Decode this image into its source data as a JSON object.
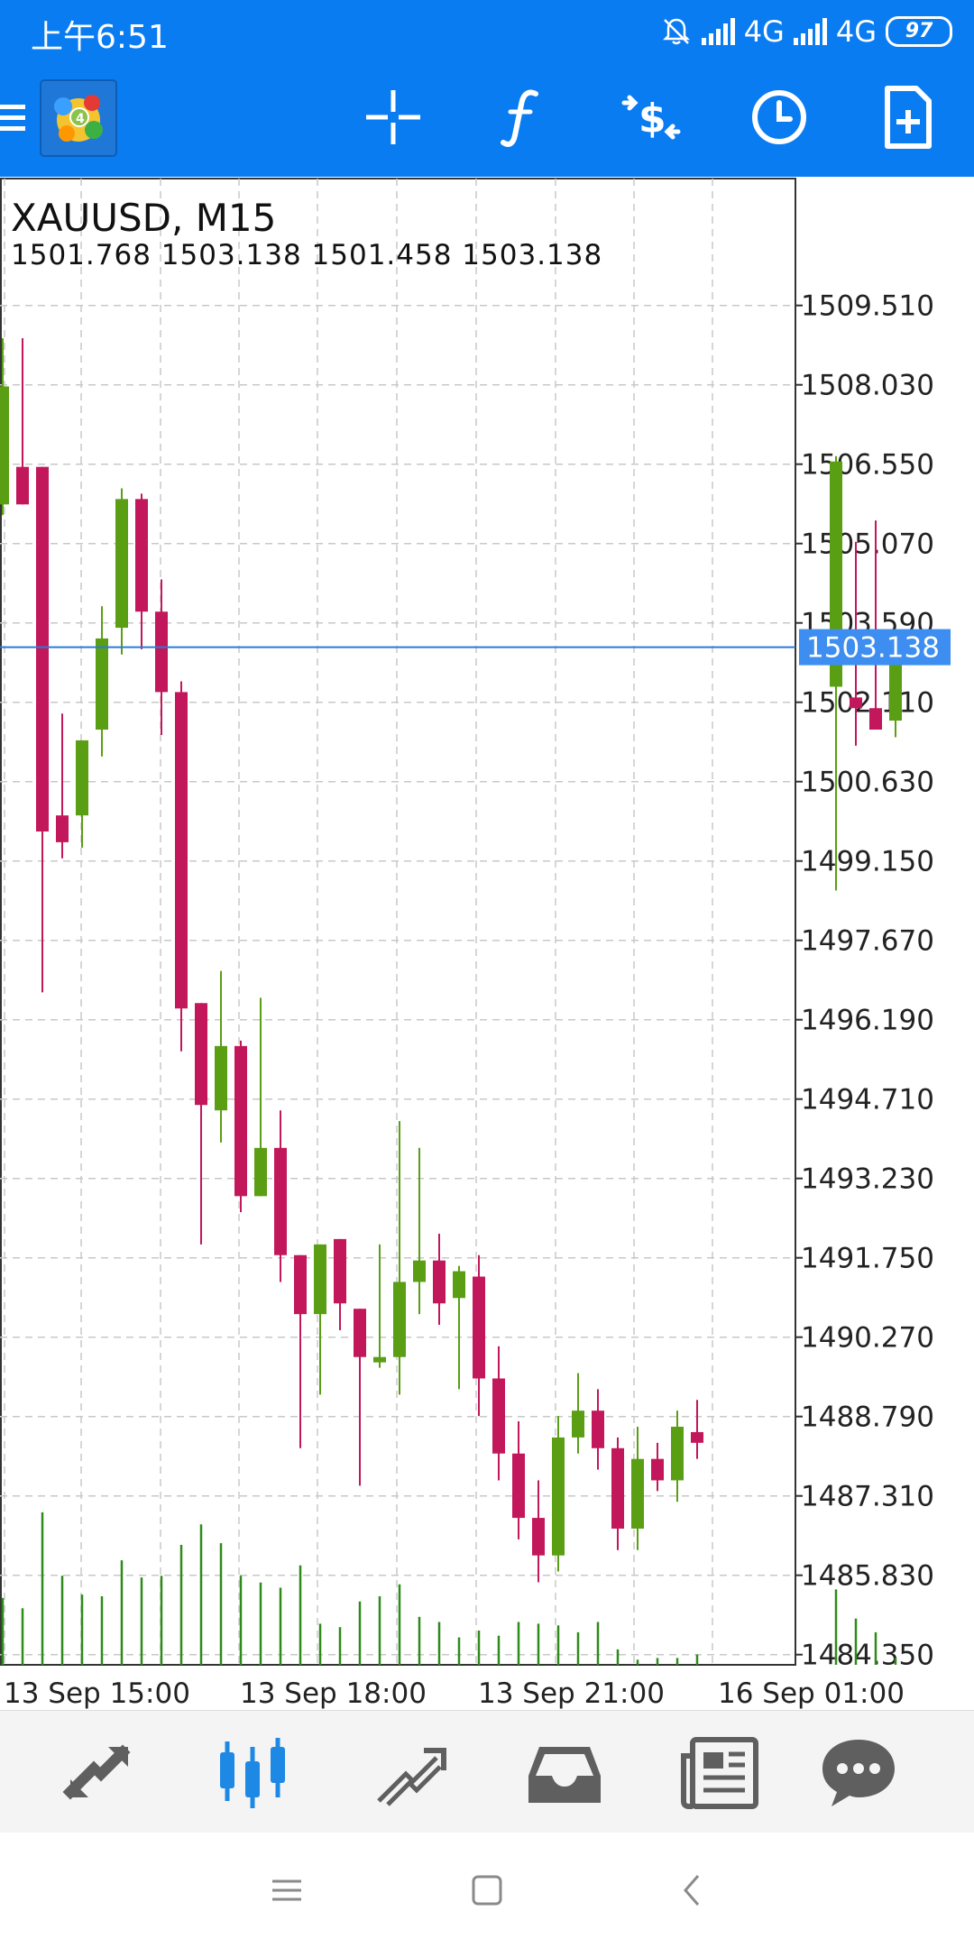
{
  "status_bar": {
    "time": "上午6:51",
    "network_1": "4G",
    "network_2": "4G",
    "battery": "97",
    "icons": [
      "mute-bell-icon",
      "signal-icon",
      "signal-icon",
      "battery-icon"
    ]
  },
  "toolbar": {
    "buttons": [
      "menu-icon",
      "metatrader-logo",
      "crosshair-icon",
      "indicators-f-icon",
      "trade-dollar-icon",
      "timeframe-clock-icon",
      "new-template-icon"
    ]
  },
  "chart": {
    "title": "XAUUSD, M15",
    "ohlc": "1501.768 1503.138 1501.458 1503.138",
    "current_price_label": "1503.138",
    "colors": {
      "up": "#5a9e14",
      "down": "#c2185b",
      "grid": "#c8c8c8",
      "price_line": "#2b7bd6",
      "price_badge": "#3d8ef0",
      "volume": "#2e8b1a"
    }
  },
  "chart_data": {
    "type": "candlestick",
    "symbol": "XAUUSD",
    "timeframe": "M15",
    "title": "XAUUSD, M15",
    "ylim": [
      1483.8,
      1510.8
    ],
    "y_ticks": [
      "1509.510",
      "1508.030",
      "1506.550",
      "1505.070",
      "1503.590",
      "1502.110",
      "1500.630",
      "1499.150",
      "1497.670",
      "1496.190",
      "1494.710",
      "1493.230",
      "1491.750",
      "1490.270",
      "1488.790",
      "1487.310",
      "1485.830",
      "1484.350"
    ],
    "x_labels": [
      "13 Sep 15:00",
      "13 Sep 18:00",
      "13 Sep 21:00",
      "16 Sep 01:00"
    ],
    "last_price": 1503.138,
    "candles": [
      {
        "o": 1505.8,
        "h": 1508.9,
        "l": 1505.6,
        "c": 1508.0
      },
      {
        "o": 1506.5,
        "h": 1508.9,
        "l": 1505.8,
        "c": 1505.8
      },
      {
        "o": 1506.5,
        "h": 1506.5,
        "l": 1496.7,
        "c": 1499.7
      },
      {
        "o": 1500.0,
        "h": 1501.9,
        "l": 1499.2,
        "c": 1499.5
      },
      {
        "o": 1500.0,
        "h": 1501.4,
        "l": 1499.4,
        "c": 1501.4
      },
      {
        "o": 1501.6,
        "h": 1503.9,
        "l": 1501.1,
        "c": 1503.3
      },
      {
        "o": 1503.5,
        "h": 1506.1,
        "l": 1503.0,
        "c": 1505.9
      },
      {
        "o": 1505.9,
        "h": 1506.0,
        "l": 1503.1,
        "c": 1503.8
      },
      {
        "o": 1503.8,
        "h": 1504.4,
        "l": 1501.5,
        "c": 1502.3
      },
      {
        "o": 1502.3,
        "h": 1502.5,
        "l": 1495.6,
        "c": 1496.4
      },
      {
        "o": 1496.5,
        "h": 1496.5,
        "l": 1492.0,
        "c": 1494.6
      },
      {
        "o": 1494.5,
        "h": 1497.1,
        "l": 1493.9,
        "c": 1495.7
      },
      {
        "o": 1495.7,
        "h": 1495.8,
        "l": 1492.6,
        "c": 1492.9
      },
      {
        "o": 1492.9,
        "h": 1496.6,
        "l": 1492.9,
        "c": 1493.8
      },
      {
        "o": 1493.8,
        "h": 1494.5,
        "l": 1491.3,
        "c": 1491.8
      },
      {
        "o": 1491.8,
        "h": 1491.8,
        "l": 1488.2,
        "c": 1490.7
      },
      {
        "o": 1490.7,
        "h": 1492.0,
        "l": 1489.2,
        "c": 1492.0
      },
      {
        "o": 1492.1,
        "h": 1492.1,
        "l": 1490.4,
        "c": 1490.9
      },
      {
        "o": 1490.8,
        "h": 1490.8,
        "l": 1487.5,
        "c": 1489.9
      },
      {
        "o": 1489.8,
        "h": 1492.0,
        "l": 1489.7,
        "c": 1489.9
      },
      {
        "o": 1489.9,
        "h": 1494.3,
        "l": 1489.2,
        "c": 1491.3
      },
      {
        "o": 1491.3,
        "h": 1493.8,
        "l": 1490.7,
        "c": 1491.7
      },
      {
        "o": 1491.7,
        "h": 1492.2,
        "l": 1490.5,
        "c": 1490.9
      },
      {
        "o": 1491.0,
        "h": 1491.6,
        "l": 1489.3,
        "c": 1491.5
      },
      {
        "o": 1491.4,
        "h": 1491.8,
        "l": 1488.8,
        "c": 1489.5
      },
      {
        "o": 1489.5,
        "h": 1490.1,
        "l": 1487.6,
        "c": 1488.1
      },
      {
        "o": 1488.1,
        "h": 1488.7,
        "l": 1486.5,
        "c": 1486.9
      },
      {
        "o": 1486.9,
        "h": 1487.6,
        "l": 1485.7,
        "c": 1486.2
      },
      {
        "o": 1486.2,
        "h": 1488.8,
        "l": 1485.9,
        "c": 1488.4
      },
      {
        "o": 1488.4,
        "h": 1489.6,
        "l": 1488.1,
        "c": 1488.9
      },
      {
        "o": 1488.9,
        "h": 1489.3,
        "l": 1487.8,
        "c": 1488.2
      },
      {
        "o": 1488.2,
        "h": 1488.4,
        "l": 1486.3,
        "c": 1486.7
      },
      {
        "o": 1486.7,
        "h": 1488.6,
        "l": 1486.3,
        "c": 1488.0
      },
      {
        "o": 1488.0,
        "h": 1488.3,
        "l": 1487.4,
        "c": 1487.6
      },
      {
        "o": 1487.6,
        "h": 1488.9,
        "l": 1487.2,
        "c": 1488.6
      },
      {
        "o": 1488.5,
        "h": 1489.1,
        "l": 1488.0,
        "c": 1488.3
      },
      {
        "o": 1502.4,
        "h": 1506.7,
        "l": 1498.6,
        "c": 1506.6
      },
      {
        "o": 1502.2,
        "h": 1505.1,
        "l": 1501.3,
        "c": 1502.0
      },
      {
        "o": 1502.0,
        "h": 1505.5,
        "l": 1501.6,
        "c": 1501.6
      },
      {
        "o": 1501.768,
        "h": 1503.138,
        "l": 1501.458,
        "c": 1503.138
      }
    ],
    "volumes": [
      39,
      33,
      89,
      52,
      41,
      40,
      61,
      51,
      52,
      70,
      82,
      71,
      52,
      48,
      45,
      58,
      24,
      22,
      37,
      40,
      47,
      28,
      25,
      16,
      20,
      17,
      25,
      24,
      23,
      19,
      25,
      9,
      3,
      4,
      4,
      6,
      44,
      27,
      19,
      4
    ],
    "grid": true
  },
  "bottom_nav": {
    "items": [
      "trade-icon",
      "chart-candles-icon",
      "history-icon",
      "mailbox-icon",
      "news-icon",
      "chat-icon"
    ],
    "active_color": "#1e88e5",
    "inactive_color": "#5f5f5f"
  },
  "system_nav": {
    "items": [
      "recents-menu-icon",
      "home-square-icon",
      "back-chevron-icon"
    ]
  }
}
